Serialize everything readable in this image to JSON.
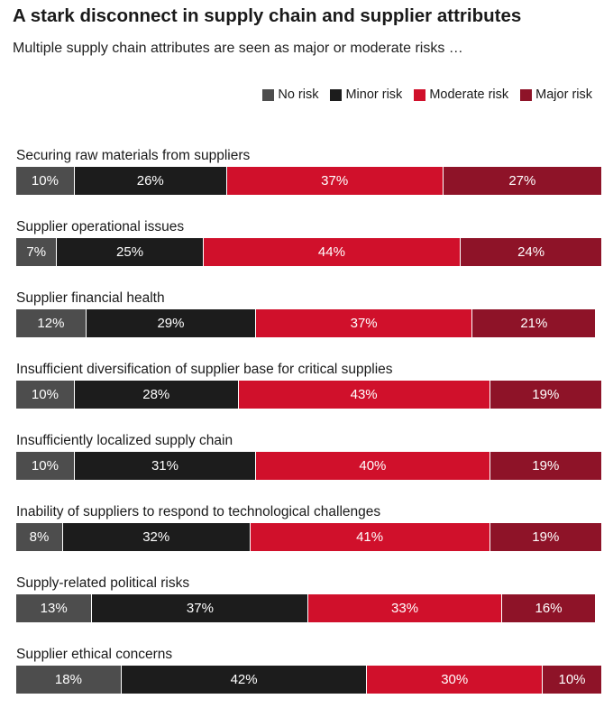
{
  "title": "A stark disconnect in supply chain and supplier attributes",
  "subtitle": "Multiple supply chain attributes are seen as major or moderate risks …",
  "colors": {
    "no_risk": "#4d4d4d",
    "minor_risk": "#1c1c1c",
    "moderate_risk": "#d0102b",
    "major_risk": "#8e1328"
  },
  "chart_data": {
    "type": "bar",
    "orientation": "horizontal",
    "stacked": true,
    "legend_placement": "top-right",
    "categories": [
      "Securing raw materials from suppliers",
      "Supplier operational issues",
      "Supplier financial health",
      "Insufficient diversification of supplier base for critical supplies",
      "Insufficiently localized supply chain",
      "Inability of suppliers to respond to technological challenges",
      "Supply-related political risks",
      "Supplier ethical concerns"
    ],
    "series": [
      {
        "name": "No risk",
        "values": [
          10,
          7,
          12,
          10,
          10,
          8,
          13,
          18
        ]
      },
      {
        "name": "Minor risk",
        "values": [
          26,
          25,
          29,
          28,
          31,
          32,
          37,
          42
        ]
      },
      {
        "name": "Moderate risk",
        "values": [
          37,
          44,
          37,
          43,
          40,
          41,
          33,
          30
        ]
      },
      {
        "name": "Major risk",
        "values": [
          27,
          24,
          21,
          19,
          19,
          19,
          16,
          10
        ]
      }
    ],
    "value_suffix": "%"
  }
}
